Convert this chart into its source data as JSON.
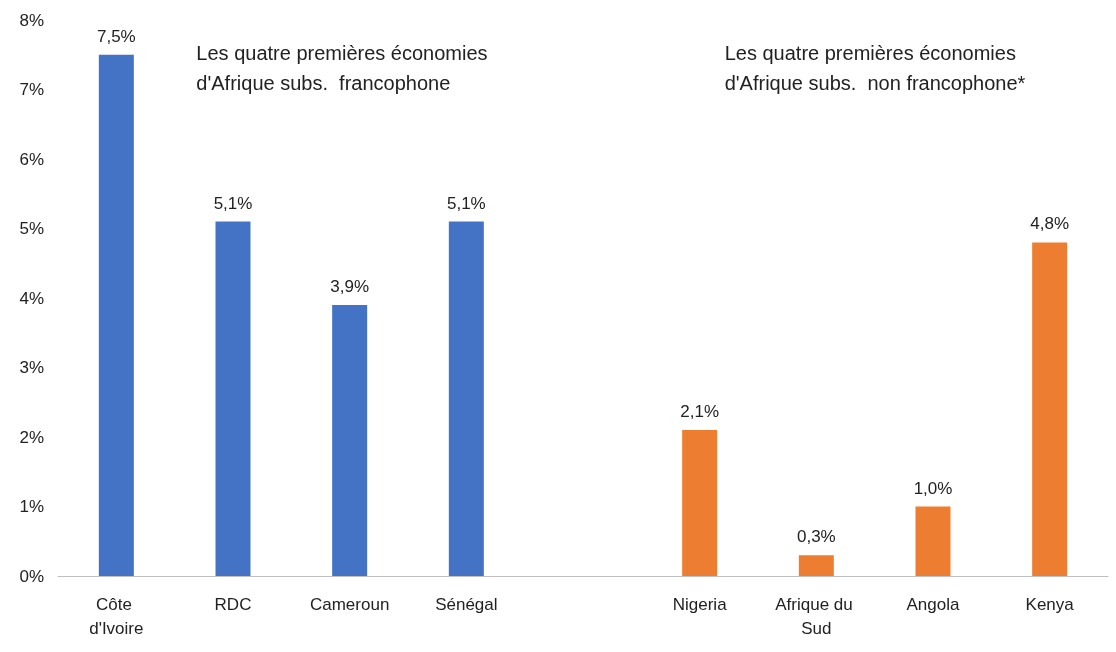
{
  "chart_data": {
    "type": "bar",
    "categories": [
      "Côte d'Ivoire",
      "RDC",
      "Cameroun",
      "Sénégal",
      null,
      "Nigeria",
      "Afrique du Sud",
      "Angola",
      "Kenya"
    ],
    "values": [
      7.5,
      5.1,
      3.9,
      5.1,
      null,
      2.1,
      0.3,
      1.0,
      4.8
    ],
    "colors": [
      "#4472c4",
      "#4472c4",
      "#4472c4",
      "#4472c4",
      null,
      "#ed7d31",
      "#ed7d31",
      "#ed7d31",
      "#ed7d31"
    ],
    "value_labels": [
      "7,5%",
      "5,1%",
      "3,9%",
      "5,1%",
      null,
      "2,1%",
      "0,3%",
      "1,0%",
      "4,8%"
    ],
    "ylim": [
      0,
      8
    ],
    "yticks": [
      {
        "value": 0,
        "label": "0%"
      },
      {
        "value": 1,
        "label": "1%"
      },
      {
        "value": 2,
        "label": "2%"
      },
      {
        "value": 3,
        "label": "3%"
      },
      {
        "value": 4,
        "label": "4%"
      },
      {
        "value": 5,
        "label": "5%"
      },
      {
        "value": 6,
        "label": "6%"
      },
      {
        "value": 7,
        "label": "7%"
      },
      {
        "value": 8,
        "label": "8%"
      }
    ],
    "grid": false,
    "annotations": [
      "Les quatre premières économies d'Afrique subs.  francophone",
      "Les quatre premières économies d'Afrique subs.  non francophone*"
    ]
  }
}
